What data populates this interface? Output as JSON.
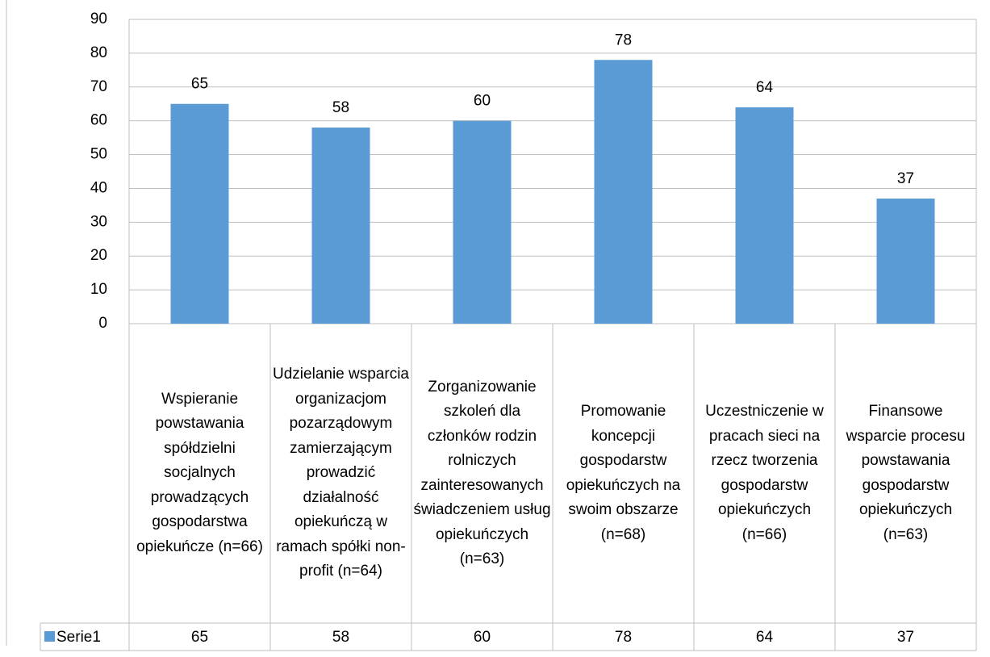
{
  "chart_data": {
    "type": "bar",
    "categories": [
      "Wspieranie powstawania spółdzielni socjalnych prowadzących gospodarstwa opiekuńcze (n=66)",
      "Udzielanie wsparcia organizacjom pozarządowym zamierzającym prowadzić działalność opiekuńczą w ramach spółki non-profit (n=64)",
      "Zorganizowanie szkoleń dla członków rodzin rolniczych zainteresowanych świadczeniem usług opiekuńczych (n=63)",
      "Promowanie koncepcji gospodarstw opiekuńczych na swoim obszarze (n=68)",
      "Uczestniczenie w pracach sieci na rzecz tworzenia gospodarstw opiekuńczych (n=66)",
      "Finansowe wsparcie procesu powstawania gospodarstw opiekuńczych (n=63)"
    ],
    "series": [
      {
        "name": "Serie1",
        "color": "#5b9bd5",
        "values": [
          65,
          58,
          60,
          78,
          64,
          37
        ]
      }
    ],
    "ylim": [
      0,
      90
    ],
    "yticks": [
      0,
      10,
      20,
      30,
      40,
      50,
      60,
      70,
      80,
      90
    ],
    "grid": true
  }
}
